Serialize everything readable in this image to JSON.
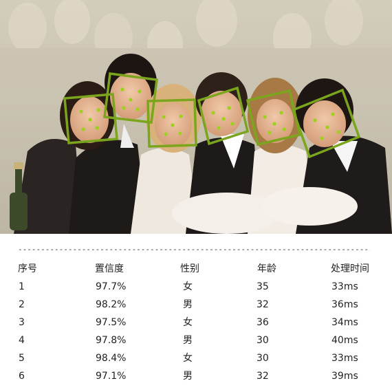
{
  "photo": {
    "alt": "",
    "face_box_color": "#7aa51d",
    "landmark_color": "#9ad21e"
  },
  "separator": {
    "text": "--------------------------------------------------------------------------------"
  },
  "table": {
    "headers": {
      "index": "序号",
      "confidence": "置信度",
      "gender": "性别",
      "age": "年龄",
      "time": "处理时间"
    },
    "rows": [
      {
        "index": "1",
        "confidence": "97.7%",
        "gender": "女",
        "age": "35",
        "time": "33ms"
      },
      {
        "index": "2",
        "confidence": "98.2%",
        "gender": "男",
        "age": "32",
        "time": "36ms"
      },
      {
        "index": "3",
        "confidence": "97.5%",
        "gender": "女",
        "age": "36",
        "time": "34ms"
      },
      {
        "index": "4",
        "confidence": "97.8%",
        "gender": "男",
        "age": "30",
        "time": "40ms"
      },
      {
        "index": "5",
        "confidence": "98.4%",
        "gender": "女",
        "age": "30",
        "time": "33ms"
      },
      {
        "index": "6",
        "confidence": "97.1%",
        "gender": "男",
        "age": "32",
        "time": "39ms"
      }
    ]
  }
}
